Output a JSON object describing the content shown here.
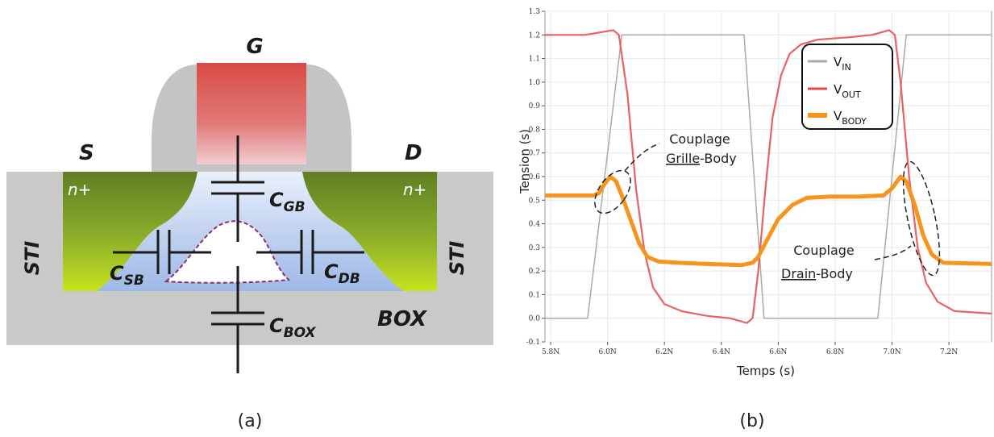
{
  "panel_a": {
    "caption": "(a)",
    "gate": "G",
    "source": "S",
    "drain": "D",
    "source_doping": "n+",
    "drain_doping": "n+",
    "sti_left": "STI",
    "sti_right": "STI",
    "box": "BOX",
    "capacitors": [
      {
        "name": "C",
        "sub": "GB"
      },
      {
        "name": "C",
        "sub": "SB"
      },
      {
        "name": "C",
        "sub": "DB"
      },
      {
        "name": "C",
        "sub": "BOX"
      }
    ],
    "colors": {
      "gate": "#d9534a",
      "oxide_spacer": "#c4c4c4",
      "nplus": "#6e8c2a",
      "body": "#b9cdec",
      "box": "#c9c9c9"
    }
  },
  "panel_b": {
    "caption": "(b)",
    "annotation_1": {
      "line1": "Couplage",
      "underlined": "Grille",
      "rest": "-Body"
    },
    "annotation_2": {
      "line1": "Couplage",
      "underlined": "Drain",
      "rest": "-Body"
    }
  },
  "chart_data": {
    "type": "line",
    "xlabel": "Temps (s)",
    "ylabel": "Tension (s)",
    "xlim": [
      5.78,
      7.35
    ],
    "ylim": [
      -0.1,
      1.3
    ],
    "x_ticks": [
      "5.8N",
      "6.0N",
      "6.2N",
      "6.4N",
      "6.6N",
      "6.8N",
      "7.0N",
      "7.2N"
    ],
    "y_ticks": [
      "-0.1",
      "0.0",
      "0.1",
      "0.2",
      "0.3",
      "0.4",
      "0.5",
      "0.6",
      "0.7",
      "0.8",
      "0.9",
      "1.0",
      "1.1",
      "1.2",
      "1.3"
    ],
    "legend_position": "top-right",
    "series": [
      {
        "name": "V",
        "sub": "IN",
        "color": "#aaaaaa",
        "x": [
          5.78,
          5.93,
          6.05,
          6.48,
          6.55,
          6.95,
          7.05,
          7.35
        ],
        "y": [
          0,
          0,
          1.2,
          1.2,
          0,
          0,
          1.2,
          1.2
        ]
      },
      {
        "name": "V",
        "sub": "OUT",
        "color": "#e84545",
        "x": [
          5.78,
          5.92,
          6.02,
          6.04,
          6.07,
          6.1,
          6.13,
          6.16,
          6.2,
          6.26,
          6.35,
          6.43,
          6.49,
          6.51,
          6.53,
          6.555,
          6.58,
          6.61,
          6.64,
          6.68,
          6.74,
          6.85,
          6.93,
          6.99,
          7.01,
          7.03,
          7.06,
          7.09,
          7.12,
          7.16,
          7.22,
          7.35
        ],
        "y": [
          1.2,
          1.2,
          1.22,
          1.2,
          0.95,
          0.55,
          0.28,
          0.13,
          0.06,
          0.03,
          0.01,
          0.0,
          -0.02,
          0.0,
          0.2,
          0.55,
          0.85,
          1.03,
          1.12,
          1.16,
          1.18,
          1.19,
          1.2,
          1.22,
          1.2,
          1.0,
          0.6,
          0.3,
          0.15,
          0.07,
          0.03,
          0.02
        ]
      },
      {
        "name": "V",
        "sub": "BODY",
        "color": "#f7941d",
        "x": [
          5.78,
          5.95,
          5.97,
          5.99,
          6.01,
          6.03,
          6.05,
          6.08,
          6.11,
          6.14,
          6.18,
          6.25,
          6.35,
          6.47,
          6.51,
          6.53,
          6.56,
          6.6,
          6.65,
          6.7,
          6.78,
          6.88,
          6.97,
          7.0,
          7.03,
          7.05,
          7.08,
          7.11,
          7.14,
          7.18,
          7.35
        ],
        "y": [
          0.52,
          0.52,
          0.53,
          0.57,
          0.6,
          0.58,
          0.52,
          0.42,
          0.32,
          0.26,
          0.24,
          0.235,
          0.23,
          0.225,
          0.235,
          0.26,
          0.33,
          0.42,
          0.48,
          0.51,
          0.515,
          0.515,
          0.52,
          0.55,
          0.6,
          0.58,
          0.48,
          0.35,
          0.27,
          0.235,
          0.23
        ]
      }
    ]
  }
}
